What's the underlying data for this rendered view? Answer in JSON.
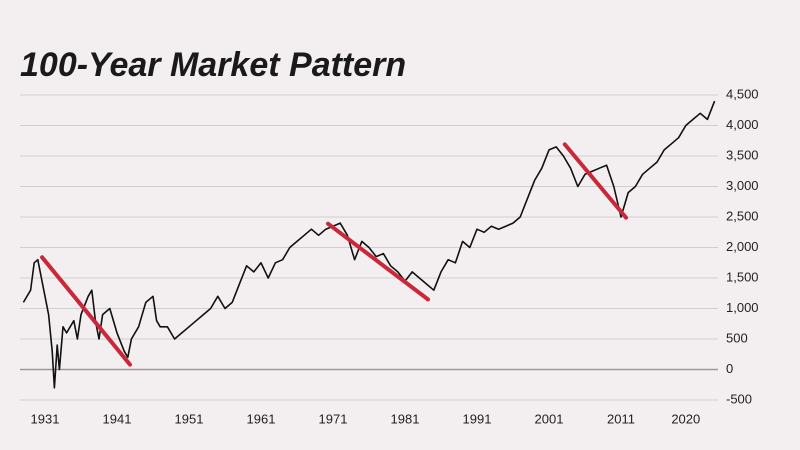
{
  "chart_data": {
    "type": "line",
    "title": "100-Year Market Pattern",
    "xlim": [
      1928,
      2025
    ],
    "ylim": [
      -500,
      4500
    ],
    "xticks": [
      1931,
      1941,
      1951,
      1961,
      1971,
      1981,
      1991,
      2001,
      2011,
      2020
    ],
    "yticks": [
      -500,
      0,
      500,
      {
        "value": 1000,
        "label": "1,000"
      },
      {
        "value": 1500,
        "label": "1,500"
      },
      {
        "value": 2000,
        "label": "2,000"
      },
      {
        "value": 2500,
        "label": "2,500"
      },
      {
        "value": 3000,
        "label": "3,000"
      },
      {
        "value": 3500,
        "label": "3,500"
      },
      {
        "value": 4000,
        "label": "4,000"
      },
      {
        "value": 4500,
        "label": "4,500"
      }
    ],
    "grid": true,
    "series": [
      {
        "color": "#111111",
        "x": [
          1928,
          1929,
          1929.5,
          1930,
          1930.5,
          1931,
          1931.5,
          1932,
          1932.3,
          1932.7,
          1933,
          1933.5,
          1934,
          1935,
          1935.5,
          1936,
          1937,
          1937.5,
          1938,
          1938.5,
          1939,
          1940,
          1941,
          1942,
          1942.5,
          1943,
          1944,
          1945,
          1946,
          1946.5,
          1947,
          1948,
          1949,
          1950,
          1951,
          1952,
          1953,
          1954,
          1955,
          1956,
          1957,
          1958,
          1959,
          1960,
          1961,
          1962,
          1963,
          1964,
          1965,
          1966,
          1967,
          1968,
          1969,
          1970,
          1971,
          1972,
          1973,
          1974,
          1975,
          1976,
          1977,
          1978,
          1979,
          1980,
          1981,
          1982,
          1983,
          1984,
          1985,
          1986,
          1987,
          1988,
          1989,
          1990,
          1991,
          1992,
          1993,
          1994,
          1995,
          1996,
          1997,
          1998,
          1999,
          2000,
          2001,
          2002,
          2003,
          2004,
          2005,
          2006,
          2007,
          2008,
          2009,
          2010,
          2011,
          2012,
          2013,
          2014,
          2015,
          2016,
          2017,
          2018,
          2019,
          2020,
          2021,
          2022,
          2023,
          2024
        ],
        "values": [
          1100,
          1300,
          1750,
          1800,
          1500,
          1200,
          900,
          300,
          -300,
          400,
          0,
          700,
          600,
          800,
          500,
          900,
          1200,
          1300,
          800,
          500,
          900,
          1000,
          600,
          300,
          200,
          500,
          700,
          1100,
          1200,
          800,
          700,
          700,
          500,
          600,
          700,
          800,
          900,
          1000,
          1200,
          1000,
          1100,
          1400,
          1700,
          1600,
          1750,
          1500,
          1750,
          1800,
          2000,
          2100,
          2200,
          2300,
          2200,
          2300,
          2350,
          2400,
          2200,
          1800,
          2100,
          2000,
          1850,
          1900,
          1700,
          1600,
          1450,
          1600,
          1500,
          1400,
          1300,
          1600,
          1800,
          1750,
          2100,
          2000,
          2300,
          2250,
          2350,
          2300,
          2350,
          2400,
          2500,
          2800,
          3100,
          3300,
          3600,
          3650,
          3500,
          3300,
          3000,
          3200,
          3250,
          3300,
          3350,
          3000,
          2500,
          2900,
          3000,
          3200,
          3300,
          3400,
          3600,
          3700,
          3800,
          4000,
          4100,
          4200,
          4100,
          4400
        ]
      }
    ],
    "annotations": [
      {
        "color": "#c8283a",
        "x": [
          1930.6,
          1942.8
        ],
        "y": [
          1840,
          80
        ]
      },
      {
        "color": "#c8283a",
        "x": [
          1970.3,
          1984.2
        ],
        "y": [
          2390,
          1150
        ]
      },
      {
        "color": "#c8283a",
        "x": [
          2003.2,
          2011.7
        ],
        "y": [
          3690,
          2490
        ]
      }
    ]
  }
}
